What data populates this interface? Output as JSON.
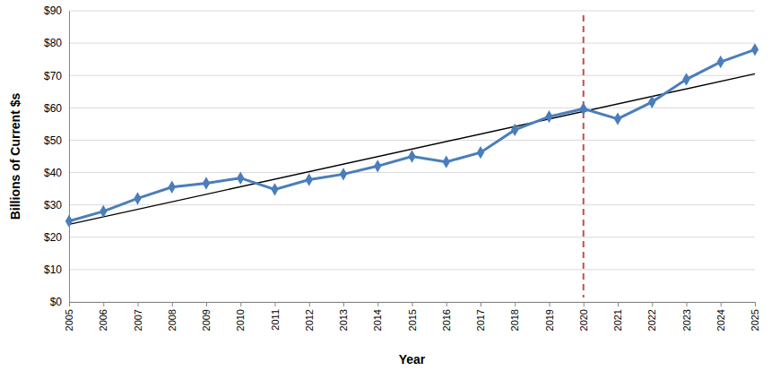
{
  "chart_data": {
    "type": "line",
    "x_label": "Year",
    "y_label": "Billions of Current $s",
    "x": [
      2005,
      2006,
      2007,
      2008,
      2009,
      2010,
      2011,
      2012,
      2013,
      2014,
      2015,
      2016,
      2017,
      2018,
      2019,
      2020,
      2021,
      2022,
      2023,
      2024,
      2025
    ],
    "series": [
      {
        "color": "#4a7ebb",
        "marker": "diamond",
        "line_style": "solid",
        "values": [
          25,
          28,
          32,
          35.5,
          36.7,
          38.3,
          34.8,
          37.8,
          39.5,
          42,
          45,
          43.3,
          46.2,
          53.2,
          57.3,
          59.7,
          56.6,
          61.8,
          68.8,
          74.2,
          78
        ]
      },
      {
        "type": "line",
        "color": "#000000",
        "line_style": "solid",
        "x": [
          2005,
          2025
        ],
        "values": [
          24,
          70.5
        ]
      }
    ],
    "reference_lines": [
      {
        "x": 2020,
        "color": "#c0504d",
        "line_style": "dashed"
      }
    ],
    "xlim": [
      2005,
      2025
    ],
    "xticks": [
      2005,
      2006,
      2007,
      2008,
      2009,
      2010,
      2011,
      2012,
      2013,
      2014,
      2015,
      2016,
      2017,
      2018,
      2019,
      2020,
      2021,
      2022,
      2023,
      2024,
      2025
    ],
    "ylim": [
      0,
      90
    ],
    "yticks": [
      {
        "value": 0,
        "label": "$0"
      },
      {
        "value": 10,
        "label": "$10"
      },
      {
        "value": 20,
        "label": "$20"
      },
      {
        "value": 30,
        "label": "$30"
      },
      {
        "value": 40,
        "label": "$40"
      },
      {
        "value": 50,
        "label": "$50"
      },
      {
        "value": 60,
        "label": "$60"
      },
      {
        "value": 70,
        "label": "$70"
      },
      {
        "value": 80,
        "label": "$80"
      },
      {
        "value": 90,
        "label": "$90"
      }
    ],
    "grid": true
  }
}
